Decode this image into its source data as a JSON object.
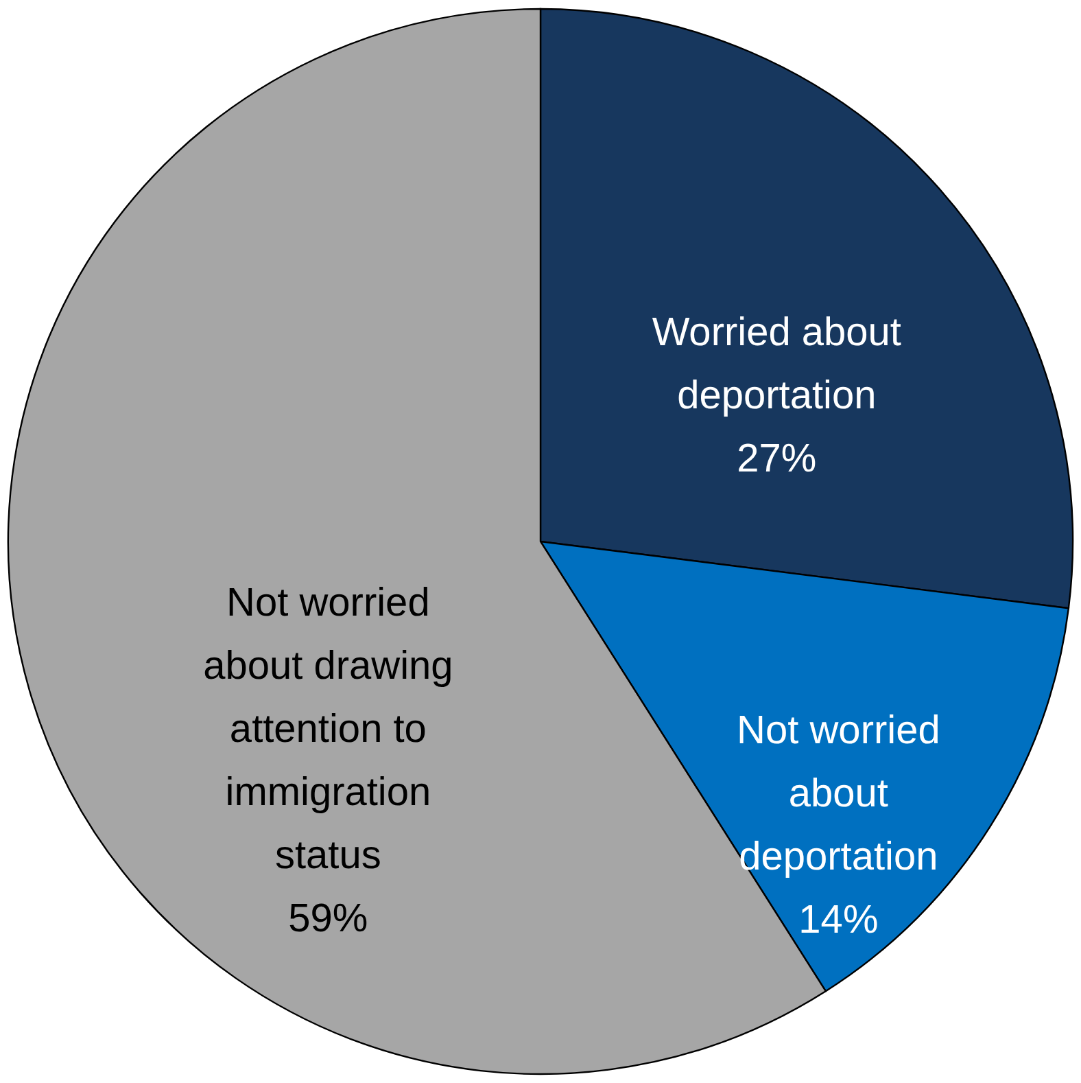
{
  "chart_data": {
    "type": "pie",
    "categories": [
      "Worried about deportation",
      "Not worried about deportation",
      "Not worried about drawing attention to immigration status"
    ],
    "values": [
      27,
      14,
      59
    ],
    "colors": [
      "#17375e",
      "#0070c0",
      "#a6a6a6"
    ],
    "value_labels": [
      "27%",
      "14%",
      "59%"
    ]
  }
}
